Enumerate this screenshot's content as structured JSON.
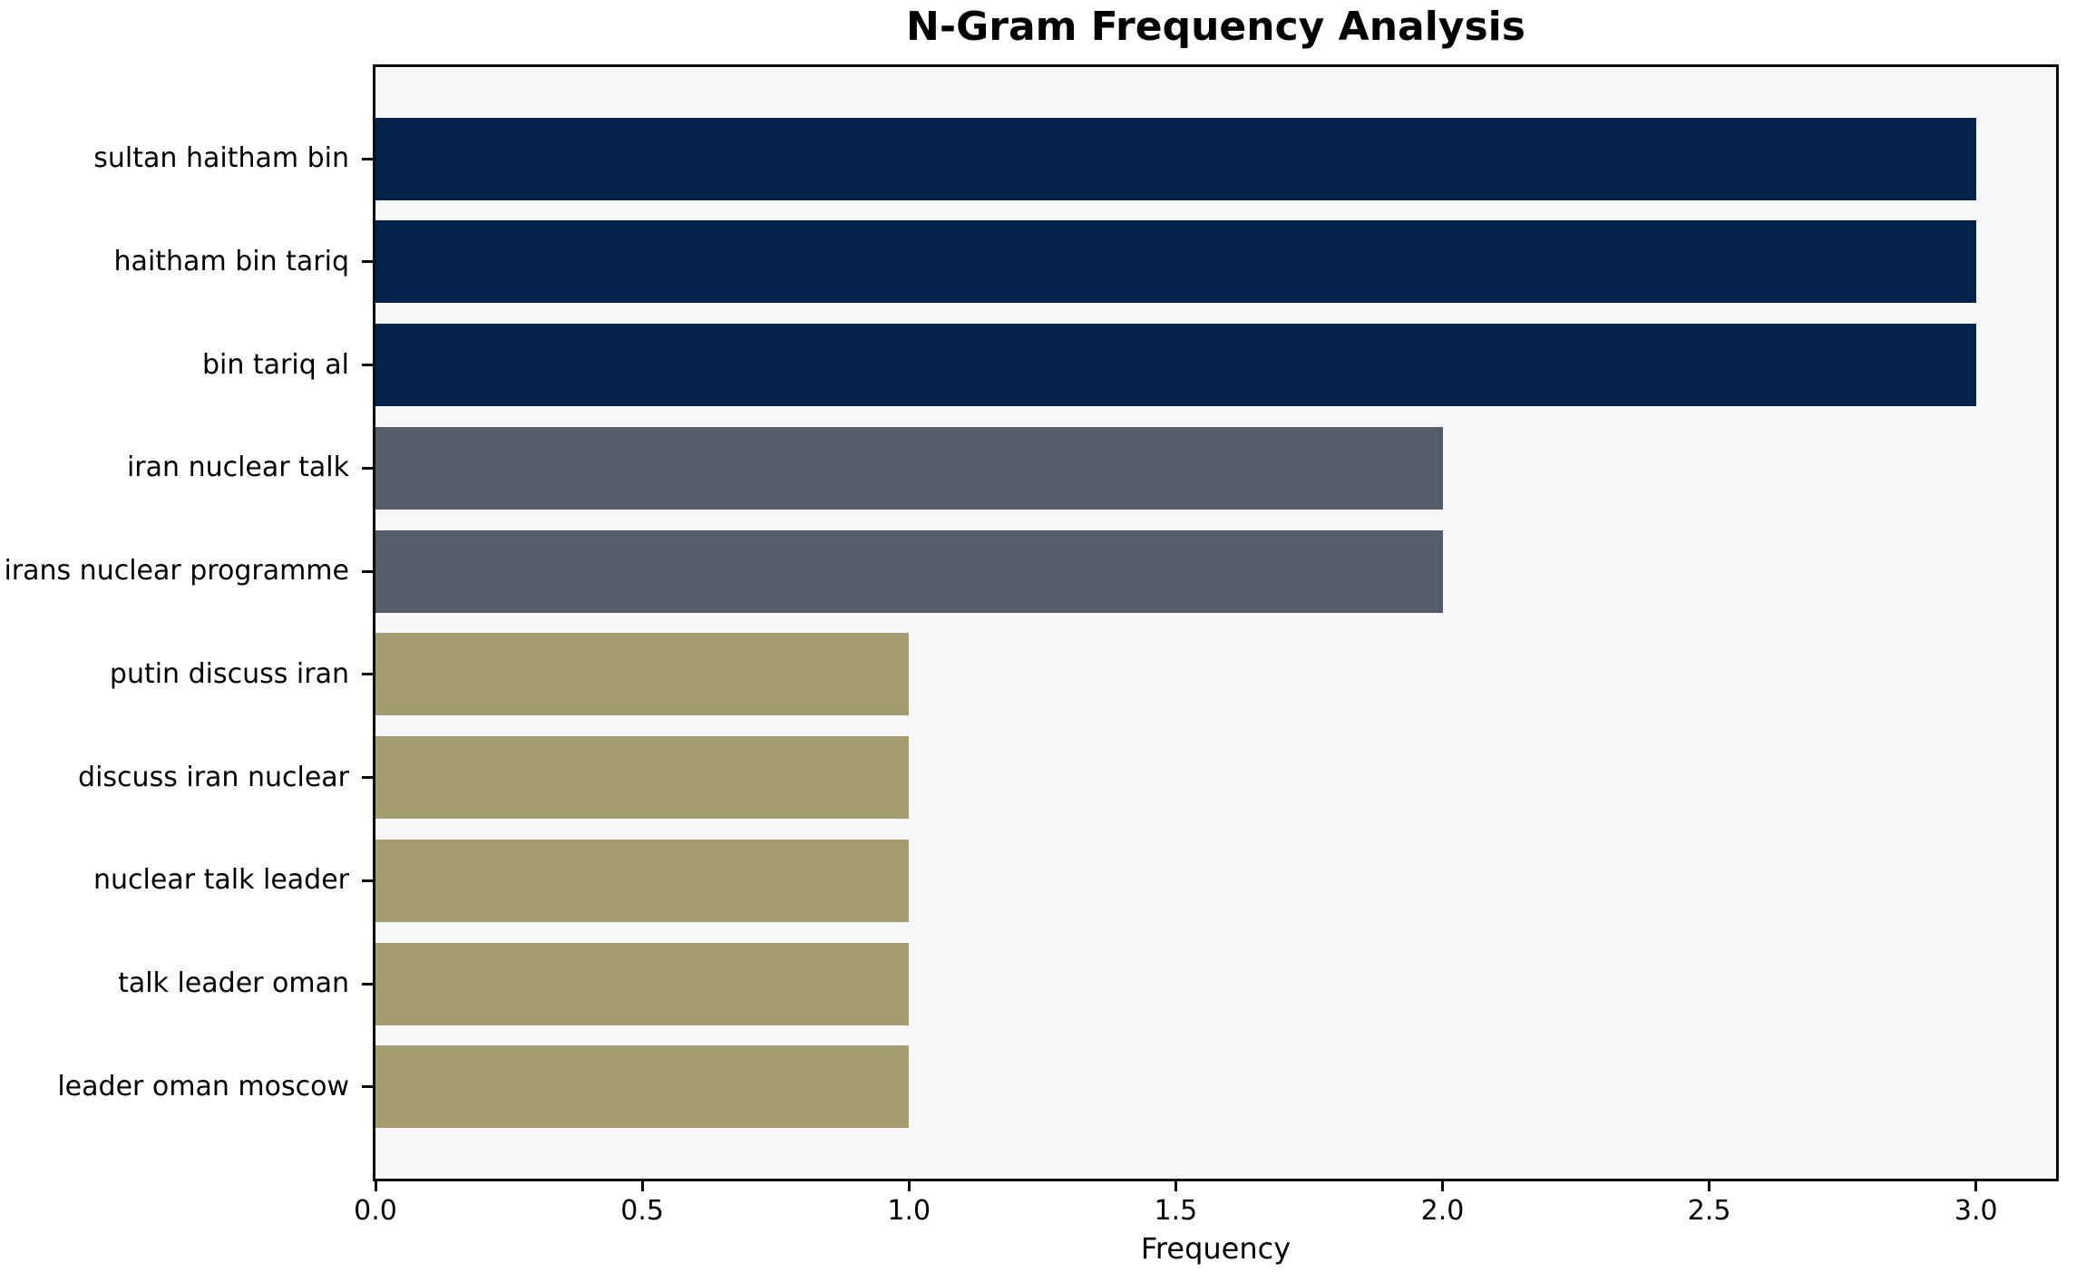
{
  "chart_data": {
    "type": "bar",
    "orientation": "horizontal",
    "title": "N-Gram Frequency Analysis",
    "xlabel": "Frequency",
    "ylabel": "",
    "categories": [
      "sultan haitham bin",
      "haitham bin tariq",
      "bin tariq al",
      "iran nuclear talk",
      "irans nuclear programme",
      "putin discuss iran",
      "discuss iran nuclear",
      "nuclear talk leader",
      "talk leader oman",
      "leader oman moscow"
    ],
    "values": [
      3,
      3,
      3,
      2,
      2,
      1,
      1,
      1,
      1,
      1
    ],
    "bar_colors": [
      "#03234d",
      "#03234d",
      "#03234d",
      "#565c6b",
      "#565c6b",
      "#a49d72",
      "#a49d72",
      "#a49d72",
      "#a49d72",
      "#a49d72"
    ],
    "x_ticks": [
      "0.0",
      "0.5",
      "1.0",
      "1.5",
      "2.0",
      "2.5",
      "3.0"
    ],
    "x_tick_values": [
      0,
      0.5,
      1,
      1.5,
      2,
      2.5,
      3
    ],
    "xlim": [
      0,
      3.15
    ],
    "grid": false,
    "legend": null,
    "bar_fraction": 0.8,
    "colors": {
      "figure_bg": "#ffffff",
      "plot_bg": "#f7f7f9",
      "spine": "#0a0a0a",
      "text": "#000000"
    }
  }
}
